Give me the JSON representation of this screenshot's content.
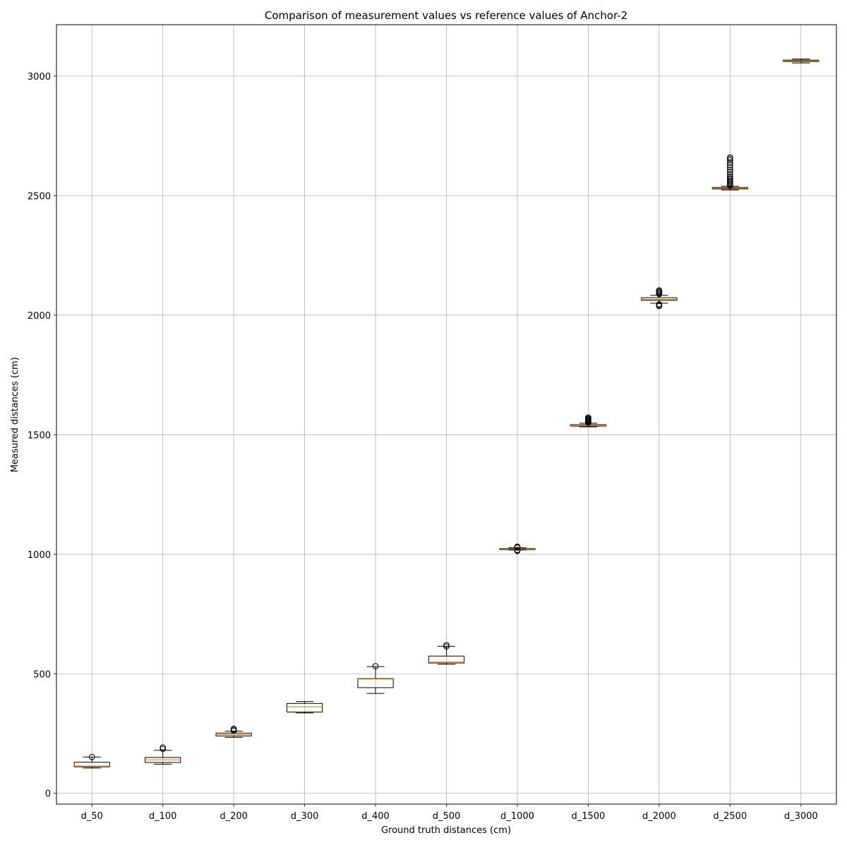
{
  "chart_data": {
    "type": "box",
    "title": "Comparison of measurement values vs reference values of Anchor-2",
    "xlabel": "Ground truth distances (cm)",
    "ylabel": "Measured distances (cm)",
    "categories": [
      "d_50",
      "d_100",
      "d_200",
      "d_300",
      "d_400",
      "d_500",
      "d_1000",
      "d_1500",
      "d_2000",
      "d_2500",
      "d_3000"
    ],
    "ylim": [
      -45,
      3215
    ],
    "yticks": [
      0,
      500,
      1000,
      1500,
      2000,
      2500,
      3000
    ],
    "grid": true,
    "legend": "none",
    "colors": {
      "box": "#000000",
      "median": "#ff7f0e",
      "grid": "#b0b0b0"
    },
    "boxes": [
      {
        "label": "d_50",
        "whislo": 106,
        "q1": 111,
        "med": 114,
        "q3": 130,
        "whishi": 152,
        "fliers": [
          152
        ]
      },
      {
        "label": "d_100",
        "whislo": 122,
        "q1": 129,
        "med": 140,
        "q3": 150,
        "whishi": 180,
        "fliers": [
          186,
          192
        ]
      },
      {
        "label": "d_200",
        "whislo": 234,
        "q1": 240,
        "med": 246,
        "q3": 252,
        "whishi": 260,
        "fliers": [
          262,
          266,
          270
        ]
      },
      {
        "label": "d_300",
        "whislo": 336,
        "q1": 340,
        "med": 362,
        "q3": 376,
        "whishi": 384,
        "fliers": []
      },
      {
        "label": "d_400",
        "whislo": 418,
        "q1": 442,
        "med": 478,
        "q3": 480,
        "whishi": 530,
        "fliers": [
          532
        ]
      },
      {
        "label": "d_500",
        "whislo": 540,
        "q1": 545,
        "med": 550,
        "q3": 574,
        "whishi": 615,
        "fliers": [
          614,
          620
        ]
      },
      {
        "label": "d_1000",
        "whislo": 1018,
        "q1": 1020,
        "med": 1022,
        "q3": 1024,
        "whishi": 1027,
        "fliers": [
          1014,
          1016,
          1018,
          1028,
          1030,
          1032
        ]
      },
      {
        "label": "d_1500",
        "whislo": 1533,
        "q1": 1536,
        "med": 1538,
        "q3": 1542,
        "whishi": 1548,
        "fliers": [
          1550,
          1553,
          1556,
          1559,
          1562,
          1565,
          1568,
          1572
        ]
      },
      {
        "label": "d_2000",
        "whislo": 2050,
        "q1": 2062,
        "med": 2066,
        "q3": 2073,
        "whishi": 2083,
        "fliers": [
          2038,
          2042,
          2046,
          2088,
          2092,
          2096,
          2100,
          2104
        ]
      },
      {
        "label": "d_2500",
        "whislo": 2524,
        "q1": 2528,
        "med": 2531,
        "q3": 2534,
        "whishi": 2539,
        "fliers": [
          2542,
          2547,
          2552,
          2557,
          2562,
          2568,
          2574,
          2580,
          2590,
          2600,
          2608,
          2618,
          2628,
          2638,
          2648,
          2655,
          2660
        ]
      },
      {
        "label": "d_3000",
        "whislo": 3055,
        "q1": 3061,
        "med": 3064,
        "q3": 3067,
        "whishi": 3071,
        "fliers": []
      }
    ]
  }
}
